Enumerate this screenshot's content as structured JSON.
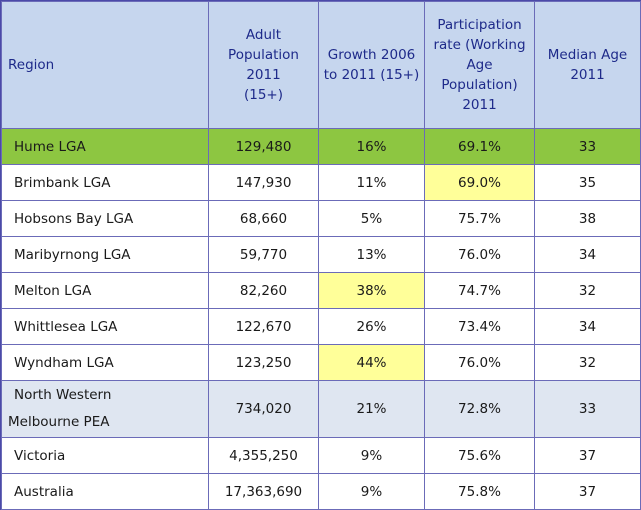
{
  "headers": {
    "region": "Region",
    "population": [
      "Adult",
      "Population",
      "2011",
      "(15+)"
    ],
    "growth": [
      "Growth 2006",
      "to 2011 (15+)"
    ],
    "participation": [
      "Participation",
      "rate (Working",
      "Age",
      "Population)",
      "2011"
    ],
    "median_age": [
      "Median Age",
      "2011"
    ]
  },
  "rows": [
    {
      "region": "Hume LGA",
      "population": "129,480",
      "growth": "16%",
      "participation": "69.1%",
      "median_age": "33"
    },
    {
      "region": "Brimbank LGA",
      "population": "147,930",
      "growth": "11%",
      "participation": "69.0%",
      "median_age": "35"
    },
    {
      "region": "Hobsons Bay LGA",
      "population": "68,660",
      "growth": "5%",
      "participation": "75.7%",
      "median_age": "38"
    },
    {
      "region": "Maribyrnong LGA",
      "population": "59,770",
      "growth": "13%",
      "participation": "76.0%",
      "median_age": "34"
    },
    {
      "region": "Melton LGA",
      "population": "82,260",
      "growth": "38%",
      "participation": "74.7%",
      "median_age": "32"
    },
    {
      "region": "Whittlesea LGA",
      "population": "122,670",
      "growth": "26%",
      "participation": "73.4%",
      "median_age": "34"
    },
    {
      "region": "Wyndham LGA",
      "population": "123,250",
      "growth": "44%",
      "participation": "76.0%",
      "median_age": "32"
    },
    {
      "region": [
        "North Western",
        "Melbourne PEA"
      ],
      "population": "734,020",
      "growth": "21%",
      "participation": "72.8%",
      "median_age": "33"
    },
    {
      "region": "Victoria",
      "population": "4,355,250",
      "growth": "9%",
      "participation": "75.6%",
      "median_age": "37"
    },
    {
      "region": "Australia",
      "population": "17,363,690",
      "growth": "9%",
      "participation": "75.8%",
      "median_age": "37"
    }
  ],
  "colors": {
    "header_bg": "#c6d6ee",
    "header_text": "#1e2a8a",
    "highlight_row": "#8dc641",
    "highlight_cell": "#ffff99",
    "alt_row": "#dfe6f1",
    "border": "#6b6bb8"
  }
}
